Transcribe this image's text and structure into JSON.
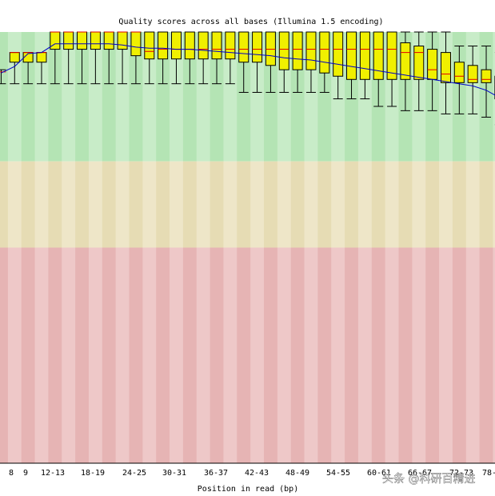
{
  "chart_data": {
    "type": "box",
    "title": "Quality scores across all bases (Illumina 1.5 encoding)",
    "xlabel": "Position in read (bp)",
    "ylabel": "",
    "ylim": [
      0,
      40
    ],
    "bands": [
      {
        "name": "good",
        "from": 28,
        "to": 40,
        "color": "#b4e4b4",
        "color_alt": "#c8ecc8"
      },
      {
        "name": "reasonable",
        "from": 20,
        "to": 28,
        "color": "#e6dcb4",
        "color_alt": "#eee6c8"
      },
      {
        "name": "poor",
        "from": 0,
        "to": 20,
        "color": "#e6b4b4",
        "color_alt": "#eec8c8"
      }
    ],
    "tick_labels": [
      "8",
      "9",
      "12-13",
      "18-19",
      "24-25",
      "30-31",
      "36-37",
      "42-43",
      "48-49",
      "54-55",
      "60-61",
      "66-67",
      "72-73",
      "78-79"
    ],
    "categories": [
      "7",
      "8",
      "9",
      "10-11",
      "12-13",
      "14-15",
      "16-17",
      "18-19",
      "20-21",
      "22-23",
      "24-25",
      "26-27",
      "28-29",
      "30-31",
      "32-33",
      "34-35",
      "36-37",
      "38-39",
      "40-41",
      "42-43",
      "44-45",
      "46-47",
      "48-49",
      "50-51",
      "52-53",
      "54-55",
      "56-57",
      "58-59",
      "60-61",
      "62-63",
      "64-65",
      "66-67",
      "68-69",
      "70-71",
      "72-73",
      "74-75",
      "76-77",
      "78-79"
    ],
    "box_q1": [
      null,
      37.2,
      37.2,
      37.2,
      37.2,
      37.2,
      37.2,
      37.2,
      37.2,
      37.2,
      37.2,
      37.2,
      37.2,
      37.2,
      37.2,
      37.2,
      37.2,
      37.2,
      37.2,
      37.2,
      37.2,
      37.2,
      37.2,
      37.2,
      37.2,
      37.2,
      37.2,
      37.2,
      37.2,
      37.2,
      37.2,
      37.2,
      37.2,
      37.2,
      37.2,
      37.2,
      37.2,
      37.2
    ],
    "box_q3": [
      null,
      37.2,
      37.2,
      37.2,
      37.2,
      37.2,
      37.2,
      37.2,
      37.2,
      37.2,
      37.2,
      37.2,
      37.2,
      37.2,
      37.2,
      37.2,
      37.2,
      37.2,
      37.2,
      37.2,
      37.2,
      37.2,
      37.2,
      37.2,
      37.2,
      37.2,
      37.2,
      37.2,
      37.2,
      37.2,
      37.2,
      37.2,
      37.2,
      37.2,
      37.2,
      37.2,
      37.2,
      37.2
    ],
    "whisker_low": [
      35.2,
      35.2,
      35.2,
      35.2,
      35.2,
      35.2,
      35.2,
      35.2,
      35.2,
      35.2,
      35.2,
      35.2,
      35.2,
      35.2,
      35.2,
      35.2,
      35.2,
      35.2,
      35.2,
      35.2,
      35.2,
      35.2,
      35.2,
      35.2,
      35.2,
      35.2,
      35.2,
      35.2,
      35.2,
      35.2,
      35.2,
      35.2,
      35.2,
      35.2,
      35.2,
      35.2,
      35.2,
      35.2
    ],
    "whisker_high": [
      40,
      40,
      40,
      40,
      40,
      40,
      40,
      40,
      40,
      40,
      40,
      40,
      40,
      40,
      40,
      40,
      40,
      40,
      40,
      40,
      40,
      40,
      40,
      40,
      40,
      40,
      40,
      40,
      40,
      40,
      40,
      40,
      40,
      40,
      40,
      40,
      40,
      40
    ],
    "box_low": [
      null,
      37.2,
      37.2,
      37.2,
      37.6,
      37.6,
      37.6,
      37.6,
      37.6,
      37.6,
      37.6,
      37.6,
      37.6,
      37.6,
      37.6,
      37.6,
      37.6,
      37.6,
      37.6,
      37.6,
      37.6,
      37.6,
      37.6,
      37.6,
      37.6,
      37.6,
      37.6,
      37.6,
      37.6,
      37.6,
      37.6,
      37.6,
      37.6,
      37.6,
      37.6,
      37.6,
      37.6,
      37.6
    ],
    "box_high": [
      null,
      38.0,
      38.0,
      38.0,
      40,
      40,
      40,
      40,
      40,
      40,
      40,
      40,
      40,
      40,
      40,
      40,
      40,
      40,
      40,
      40,
      40,
      40,
      40,
      40,
      40,
      40,
      40,
      40,
      40,
      40,
      40,
      40,
      40,
      40,
      40,
      40,
      40,
      40
    ],
    "median": [
      36.3,
      38.0,
      38.0,
      38.0,
      40,
      40,
      40,
      40,
      40,
      40,
      40,
      40,
      40,
      40,
      40,
      40,
      40,
      40,
      40,
      40,
      40,
      40,
      40,
      40,
      38.0,
      38.0,
      38.0,
      38.0,
      38.0,
      38.0,
      38.0,
      38.0,
      38.0,
      38.0,
      37.3,
      37.3,
      35.4,
      35.4
    ],
    "boxes": [
      {
        "q1": null,
        "q3": null,
        "lo": 35.2,
        "hi": 36.5,
        "med": 36.3
      },
      {
        "q1": 37.2,
        "q3": 38.1,
        "lo": 35.2,
        "hi": 38.1,
        "med": 38.1
      },
      {
        "q1": 37.2,
        "q3": 38.1,
        "lo": 35.2,
        "hi": 38.1,
        "med": 38.1
      },
      {
        "q1": 37.2,
        "q3": 38.1,
        "lo": 35.2,
        "hi": 38.1,
        "med": 38.1
      },
      {
        "q1": 38.4,
        "q3": 40.0,
        "lo": 35.2,
        "hi": 40.0,
        "med": 40.0
      },
      {
        "q1": 38.4,
        "q3": 40.0,
        "lo": 35.2,
        "hi": 40.0,
        "med": 40.0
      },
      {
        "q1": 38.4,
        "q3": 40.0,
        "lo": 35.2,
        "hi": 40.0,
        "med": 40.0
      },
      {
        "q1": 38.4,
        "q3": 40.0,
        "lo": 35.2,
        "hi": 40.0,
        "med": 40.0
      },
      {
        "q1": 38.4,
        "q3": 40.0,
        "lo": 35.2,
        "hi": 40.0,
        "med": 40.0
      },
      {
        "q1": 38.4,
        "q3": 40.0,
        "lo": 35.2,
        "hi": 40.0,
        "med": 40.0
      },
      {
        "q1": 37.8,
        "q3": 40.0,
        "lo": 35.2,
        "hi": 40.0,
        "med": 40.0
      },
      {
        "q1": 37.5,
        "q3": 40.0,
        "lo": 35.2,
        "hi": 40.0,
        "med": 38.2
      },
      {
        "q1": 37.5,
        "q3": 40.0,
        "lo": 35.2,
        "hi": 40.0,
        "med": 38.4
      },
      {
        "q1": 37.5,
        "q3": 40.0,
        "lo": 35.2,
        "hi": 40.0,
        "med": 38.4
      },
      {
        "q1": 37.5,
        "q3": 40.0,
        "lo": 35.2,
        "hi": 40.0,
        "med": 38.4
      },
      {
        "q1": 37.5,
        "q3": 40.0,
        "lo": 35.2,
        "hi": 40.0,
        "med": 38.4
      },
      {
        "q1": 37.5,
        "q3": 40.0,
        "lo": 35.2,
        "hi": 40.0,
        "med": 38.4
      },
      {
        "q1": 37.5,
        "q3": 40.0,
        "lo": 35.2,
        "hi": 40.0,
        "med": 38.4
      },
      {
        "q1": 37.2,
        "q3": 40.0,
        "lo": 34.4,
        "hi": 40.0,
        "med": 38.4
      },
      {
        "q1": 37.2,
        "q3": 40.0,
        "lo": 34.4,
        "hi": 40.0,
        "med": 38.4
      },
      {
        "q1": 36.9,
        "q3": 40.0,
        "lo": 34.4,
        "hi": 40.0,
        "med": 38.4
      },
      {
        "q1": 36.5,
        "q3": 40.0,
        "lo": 34.4,
        "hi": 40.0,
        "med": 38.4
      },
      {
        "q1": 36.5,
        "q3": 40.0,
        "lo": 34.4,
        "hi": 40.0,
        "med": 38.4
      },
      {
        "q1": 36.5,
        "q3": 40.0,
        "lo": 34.4,
        "hi": 40.0,
        "med": 38.4
      },
      {
        "q1": 36.2,
        "q3": 40.0,
        "lo": 34.4,
        "hi": 40.0,
        "med": 38.4
      },
      {
        "q1": 35.9,
        "q3": 40.0,
        "lo": 33.8,
        "hi": 40.0,
        "med": 38.4
      },
      {
        "q1": 35.6,
        "q3": 40.0,
        "lo": 33.8,
        "hi": 40.0,
        "med": 38.4
      },
      {
        "q1": 35.6,
        "q3": 40.0,
        "lo": 33.8,
        "hi": 40.0,
        "med": 38.4
      },
      {
        "q1": 35.6,
        "q3": 40.0,
        "lo": 33.1,
        "hi": 40.0,
        "med": 38.4
      },
      {
        "q1": 35.6,
        "q3": 40.0,
        "lo": 33.1,
        "hi": 40.0,
        "med": 38.4
      },
      {
        "q1": 35.6,
        "q3": 39.0,
        "lo": 32.7,
        "hi": 40.0,
        "med": 38.1
      },
      {
        "q1": 35.6,
        "q3": 38.7,
        "lo": 32.7,
        "hi": 40.0,
        "med": 38.1
      },
      {
        "q1": 35.6,
        "q3": 38.4,
        "lo": 32.7,
        "hi": 40.0,
        "med": 36.5
      },
      {
        "q1": 35.3,
        "q3": 38.1,
        "lo": 32.4,
        "hi": 40.0,
        "med": 36.1
      },
      {
        "q1": 35.3,
        "q3": 37.2,
        "lo": 32.4,
        "hi": 38.7,
        "med": 35.9
      },
      {
        "q1": 35.3,
        "q3": 36.9,
        "lo": 32.4,
        "hi": 38.7,
        "med": 35.6
      },
      {
        "q1": 35.3,
        "q3": 36.5,
        "lo": 32.1,
        "hi": 38.7,
        "med": 35.6
      },
      {
        "q1": 33.8,
        "q3": 35.9,
        "lo": 31.4,
        "hi": 38.1,
        "med": 35.1
      }
    ],
    "mean_line": [
      36.2,
      36.8,
      38.0,
      38.1,
      38.9,
      38.9,
      38.9,
      38.9,
      38.9,
      38.8,
      38.6,
      38.5,
      38.5,
      38.4,
      38.4,
      38.3,
      38.2,
      38.1,
      38.0,
      37.9,
      37.8,
      37.6,
      37.5,
      37.4,
      37.2,
      37.0,
      36.8,
      36.6,
      36.4,
      36.2,
      36.0,
      35.8,
      35.6,
      35.4,
      35.2,
      35.0,
      34.6,
      33.9
    ],
    "grid": false,
    "legend": "none"
  },
  "watermark": "头条 @科研百精进"
}
